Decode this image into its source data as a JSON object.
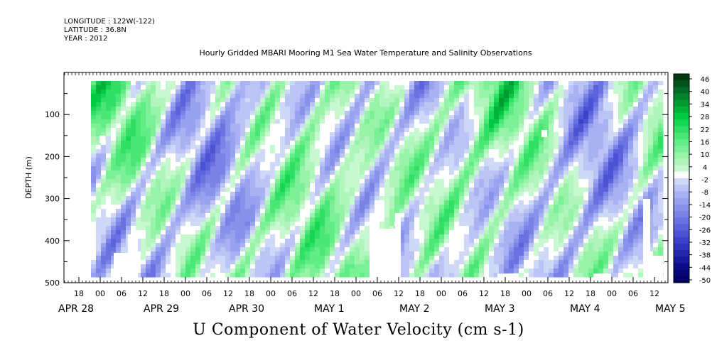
{
  "header": {
    "longitude": "LONGITUDE : 122W(-122)",
    "latitude": "LATITUDE : 36.8N",
    "year": "YEAR : 2012"
  },
  "chart_data": {
    "type": "heatmap",
    "title": "Hourly Gridded MBARI Mooring M1 Sea Water Temperature and Salinity Observations",
    "xlabel": "U Component of Water Velocity (cm s-1)",
    "ylabel": "DEPTH (m)",
    "ylim": [
      500,
      0
    ],
    "y_ticks": [
      100,
      200,
      300,
      400,
      500
    ],
    "x_hour_ticks": [
      "18",
      "00",
      "06",
      "12",
      "18",
      "00",
      "06",
      "12",
      "18",
      "00",
      "06",
      "12",
      "18",
      "00",
      "06",
      "12",
      "18",
      "00",
      "06",
      "12",
      "18",
      "00",
      "06",
      "12",
      "18",
      "00",
      "06",
      "12"
    ],
    "x_date_labels": [
      "APR 28",
      "APR 29",
      "APR 30",
      "MAY  1",
      "MAY  2",
      "MAY  3",
      "MAY  4",
      "MAY  5"
    ],
    "colorbar": {
      "labels": [
        "46",
        "40",
        "34",
        "28",
        "22",
        "16",
        "10",
        "4",
        "-2",
        "-8",
        "-14",
        "-20",
        "-26",
        "-32",
        "-38",
        "-44",
        "-50"
      ],
      "levels": [
        46,
        43,
        40,
        37,
        34,
        31,
        28,
        25,
        22,
        19,
        16,
        13,
        10,
        7,
        4,
        1,
        -2,
        -5,
        -8,
        -11,
        -14,
        -17,
        -20,
        -23,
        -26,
        -29,
        -32,
        -35,
        -38,
        -41,
        -44,
        -47,
        -50
      ],
      "colors": [
        "#003810",
        "#00511a",
        "#006a22",
        "#00832b",
        "#009a33",
        "#00b23a",
        "#00c944",
        "#16d652",
        "#2fe064",
        "#4ae776",
        "#62ec86",
        "#7cf096",
        "#96f3a8",
        "#b0f6bc",
        "#c8f8d0",
        "#ffffff",
        "#d0d8f8",
        "#bcc4f6",
        "#a8b2f2",
        "#98a2ee",
        "#8892ea",
        "#7a82e6",
        "#6a72e2",
        "#5c62dc",
        "#4c52d4",
        "#3e42ca",
        "#3034be",
        "#2426ae",
        "#18189c",
        "#0c0c8a",
        "#050578",
        "#000066"
      ]
    },
    "notes": "Time–depth section of the U component of water velocity at mooring M1, 28 Apr – 5 May 2012; alternating positive (green) and negative (blue) bands with upward-sloping tidal structure."
  }
}
